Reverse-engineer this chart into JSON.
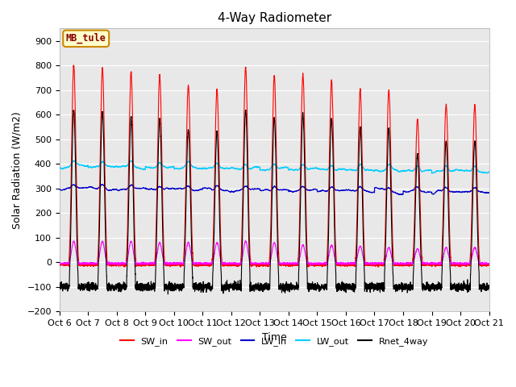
{
  "title": "4-Way Radiometer",
  "xlabel": "Time",
  "ylabel": "Solar Radiation (W/m2)",
  "ylim": [
    -200,
    950
  ],
  "yticks": [
    -200,
    -100,
    0,
    100,
    200,
    300,
    400,
    500,
    600,
    700,
    800,
    900
  ],
  "xlim": [
    0,
    15
  ],
  "xtick_labels": [
    "Oct 6",
    "Oct 7",
    "Oct 8",
    "Oct 9",
    "Oct 10",
    "Oct 11",
    "Oct 12",
    "Oct 13",
    "Oct 14",
    "Oct 15",
    "Oct 16",
    "Oct 17",
    "Oct 18",
    "Oct 19",
    "Oct 20",
    "Oct 21"
  ],
  "annotation_text": "MB_tule",
  "annotation_text_color": "#8b0000",
  "annotation_border_color": "#cc8800",
  "annotation_bg": "#ffffcc",
  "fig_bg": "#ffffff",
  "plot_bg": "#e8e8e8",
  "grid_color": "#ffffff",
  "series": {
    "SW_in": {
      "color": "#ff0000",
      "lw": 0.8
    },
    "SW_out": {
      "color": "#ff00ff",
      "lw": 0.8
    },
    "LW_in": {
      "color": "#0000cc",
      "lw": 0.9
    },
    "LW_out": {
      "color": "#00ccff",
      "lw": 1.0
    },
    "Rnet_4way": {
      "color": "#000000",
      "lw": 0.8
    }
  },
  "n_days": 15,
  "pts_per_day": 288,
  "day_peaks_SW": [
    800,
    790,
    770,
    760,
    720,
    700,
    790,
    760,
    760,
    740,
    700,
    700,
    580,
    640,
    640
  ],
  "day_peaks_SW_out": [
    85,
    85,
    85,
    80,
    80,
    80,
    85,
    80,
    70,
    70,
    65,
    60,
    55,
    60,
    60
  ],
  "lw_in_base": 300,
  "lw_out_base": 390
}
